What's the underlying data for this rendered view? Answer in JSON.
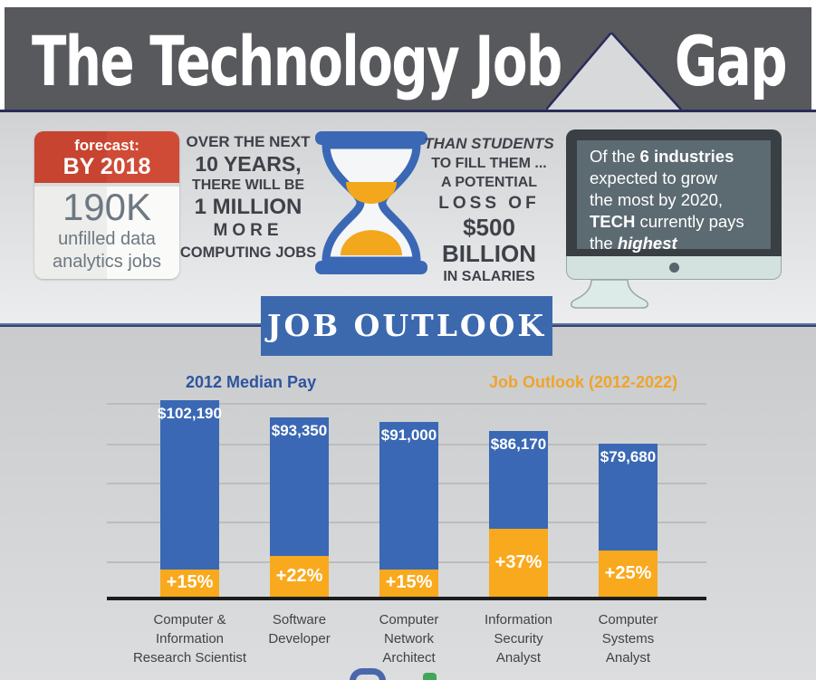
{
  "header": {
    "title_left": "The Technology Job",
    "title_right": "Gap",
    "bg_color": "#58595c",
    "underline_color": "#2a2c5a"
  },
  "stats": {
    "forecast_card": {
      "tag": "forecast:",
      "year": "BY 2018",
      "big_number": "190K",
      "line1": "unfilled data",
      "line2": "analytics jobs",
      "red_color": "#cb4633"
    },
    "next10": {
      "l1": "OVER THE NEXT",
      "l2": "10 YEARS,",
      "l3": "THERE WILL BE",
      "l4": "1 MILLION",
      "l5": "MORE",
      "l6": "COMPUTING JOBS"
    },
    "students": {
      "l1": "THAN STUDENTS",
      "l2": "TO FILL THEM ...",
      "l3": "A POTENTIAL",
      "l4": "LOSS OF",
      "l5": "$500 BILLION",
      "l6": "IN SALARIES"
    },
    "monitor": {
      "l1_pre": "Of the ",
      "l1_bold": "6 industries",
      "l2": "expected to grow",
      "l3": "the most by 2020,",
      "l4_bold": "TECH",
      "l4_rest": " currently pays",
      "l5_pre": "the ",
      "l5_bold_italic": "highest"
    }
  },
  "banner": {
    "label": "JOB OUTLOOK",
    "bg_color": "#3c69ae"
  },
  "chart_data": {
    "type": "bar",
    "stacked": true,
    "title": "JOB OUTLOOK",
    "grid": true,
    "legend_position": "top",
    "categories": [
      "Computer & Information Research Scientist",
      "Software Developer",
      "Computer Network Architect",
      "Information Security Analyst",
      "Computer Systems Analyst"
    ],
    "category_lines": [
      [
        "Computer &",
        "Information",
        "Research Scientist"
      ],
      [
        "Software",
        "Developer"
      ],
      [
        "Computer",
        "Network",
        "Architect"
      ],
      [
        "Information",
        "Security",
        "Analyst"
      ],
      [
        "Computer",
        "Systems",
        "Analyst"
      ]
    ],
    "series": [
      {
        "name": "2012 Median Pay",
        "color": "#3a68b4",
        "values": [
          102190,
          93350,
          91000,
          86170,
          79680
        ],
        "value_labels": [
          "$102,190",
          "$93,350",
          "$91,000",
          "$86,170",
          "$79,680"
        ]
      },
      {
        "name": "Job Outlook (2012-2022)",
        "color": "#f9a91d",
        "unit": "%",
        "values": [
          15,
          22,
          15,
          37,
          25
        ],
        "value_labels": [
          "+15%",
          "+22%",
          "+15%",
          "+37%",
          "+25%"
        ]
      }
    ]
  },
  "icons": {
    "hourglass_blue": "#3a68b5",
    "hourglass_sand": "#f2a71d",
    "monitor_frame": "#3a3f43",
    "monitor_screen": "#5c6a72"
  }
}
